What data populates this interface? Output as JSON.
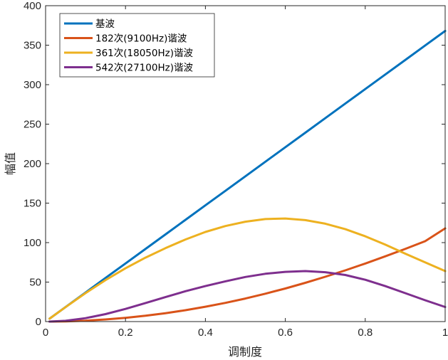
{
  "chart_data": {
    "type": "line",
    "title": "",
    "xlabel": "调制度",
    "ylabel": "幅值",
    "xlim": [
      0,
      1
    ],
    "ylim": [
      0,
      400
    ],
    "xticks": [
      0,
      0.2,
      0.4,
      0.6,
      0.8,
      1
    ],
    "xtick_labels": [
      "0",
      "0.2",
      "0.4",
      "0.6",
      "0.8",
      "1"
    ],
    "yticks": [
      0,
      50,
      100,
      150,
      200,
      250,
      300,
      350,
      400
    ],
    "ytick_labels": [
      "0",
      "50",
      "100",
      "150",
      "200",
      "250",
      "300",
      "350",
      "400"
    ],
    "grid": false,
    "legend_position": "top-left",
    "x": [
      0.01,
      0.05,
      0.1,
      0.15,
      0.2,
      0.25,
      0.3,
      0.35,
      0.4,
      0.45,
      0.5,
      0.55,
      0.6,
      0.65,
      0.7,
      0.75,
      0.8,
      0.85,
      0.9,
      0.95,
      1.0
    ],
    "series": [
      {
        "name": "基波",
        "color": "#0072BD",
        "values": [
          3.7,
          18.4,
          36.8,
          55.2,
          73.6,
          92.0,
          110.4,
          128.8,
          147.2,
          165.6,
          184.0,
          202.4,
          220.8,
          239.2,
          257.6,
          276.0,
          294.4,
          312.8,
          331.2,
          349.6,
          368.0
        ]
      },
      {
        "name": "182次(9100Hz)谐波",
        "color": "#D95319",
        "values": [
          0,
          0.3,
          1.2,
          2.7,
          4.8,
          7.4,
          10.6,
          14.4,
          18.8,
          23.7,
          29.2,
          35.3,
          41.9,
          49.1,
          56.8,
          64.9,
          73.5,
          82.6,
          92.0,
          101.8,
          118.0
        ]
      },
      {
        "name": "361次(18050Hz)谐波",
        "color": "#EDB120",
        "values": [
          3.7,
          18.3,
          36.0,
          52.5,
          67.5,
          81.0,
          93.0,
          104.0,
          113.5,
          121.0,
          126.5,
          129.8,
          130.5,
          128.5,
          124.0,
          117.0,
          108.0,
          97.5,
          86.0,
          75.0,
          64.0
        ]
      },
      {
        "name": "542次(27100Hz)谐波",
        "color": "#7E2F8E",
        "values": [
          0,
          1.0,
          4.3,
          9.5,
          16.0,
          23.5,
          31.0,
          38.5,
          45.0,
          51.0,
          56.5,
          60.5,
          63.0,
          64.0,
          62.5,
          59.0,
          53.0,
          45.0,
          36.0,
          27.0,
          18.5
        ]
      }
    ]
  }
}
